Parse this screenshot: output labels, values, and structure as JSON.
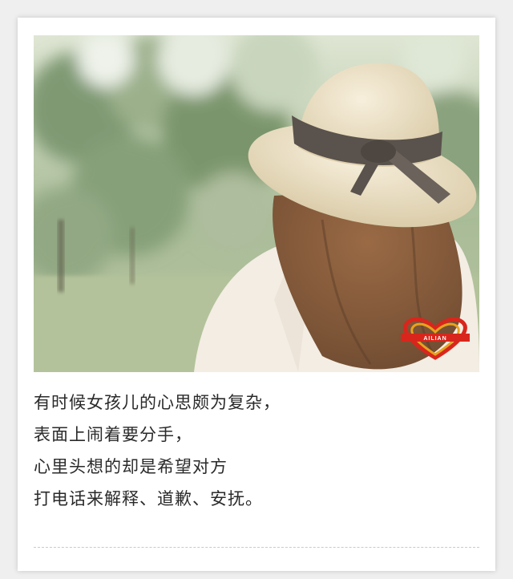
{
  "caption": {
    "lines": [
      "有时候女孩儿的心思颇为复杂，",
      "表面上闹着要分手，",
      "心里头想的却是希望对方",
      "打电话来解释、道歉、安抚。"
    ]
  },
  "photo": {
    "subject": "girl-in-straw-hat-photo",
    "watermark_text": "AILIAN"
  },
  "colors": {
    "background": "#efefef",
    "card": "#ffffff",
    "text": "#2a2a2a",
    "hat": "#efe3c7",
    "ribbon": "#5a524c",
    "hair": "#8a5d3c",
    "foliage": "#8fa784"
  }
}
